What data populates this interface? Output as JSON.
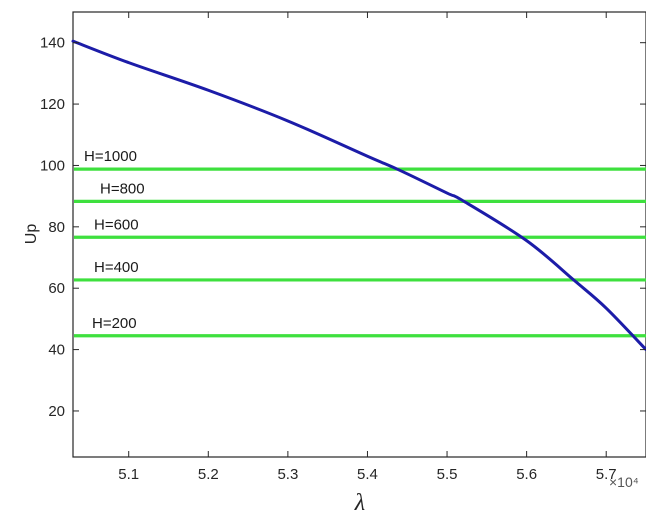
{
  "chart_data": {
    "type": "line",
    "xlabel": "λ",
    "ylabel": "Up",
    "x_exponent_label": "×10⁴",
    "xlim": [
      5.03,
      5.75
    ],
    "ylim": [
      5,
      150
    ],
    "xticks": [
      "5.1",
      "5.2",
      "5.3",
      "5.4",
      "5.5",
      "5.6",
      "5.7"
    ],
    "xtick_values": [
      5.1,
      5.2,
      5.3,
      5.4,
      5.5,
      5.6,
      5.7
    ],
    "yticks": [
      "20",
      "40",
      "60",
      "80",
      "100",
      "120",
      "140"
    ],
    "ytick_values": [
      20,
      40,
      60,
      80,
      100,
      120,
      140
    ],
    "grid": false,
    "series": [
      {
        "color": "#1c1ca8",
        "x": [
          5.03,
          5.1,
          5.2,
          5.3,
          5.4,
          5.44,
          5.5,
          5.52,
          5.6,
          5.66,
          5.7,
          5.75
        ],
        "y": [
          140.5,
          133.5,
          124.5,
          114.5,
          103,
          98.5,
          91,
          88.5,
          75.5,
          62.5,
          53.5,
          40
        ]
      }
    ],
    "horizontal_lines": [
      {
        "label": "H=1000",
        "y": 98.8,
        "color": "#3ee03e"
      },
      {
        "label": "H=800",
        "y": 88.3,
        "color": "#3ee03e"
      },
      {
        "label": "H=600",
        "y": 76.6,
        "color": "#3ee03e"
      },
      {
        "label": "H=400",
        "y": 62.7,
        "color": "#3ee03e"
      },
      {
        "label": "H=200",
        "y": 44.5,
        "color": "#3ee03e"
      }
    ]
  }
}
